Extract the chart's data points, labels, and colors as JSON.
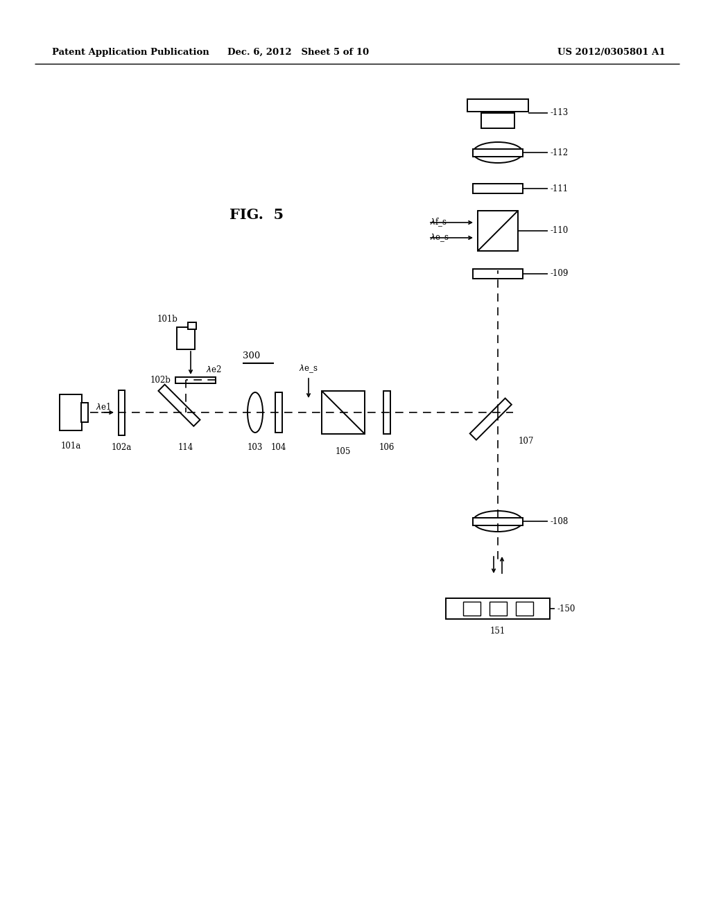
{
  "bg_color": "#ffffff",
  "text_color": "#000000",
  "header_left": "Patent Application Publication",
  "header_mid": "Dec. 6, 2012   Sheet 5 of 10",
  "header_right": "US 2012/0305801 A1",
  "fig_label": "FIG.  5",
  "lw": 1.4,
  "fontsize_label": 8.5,
  "fontsize_fig": 15,
  "fontsize_header": 9.5
}
